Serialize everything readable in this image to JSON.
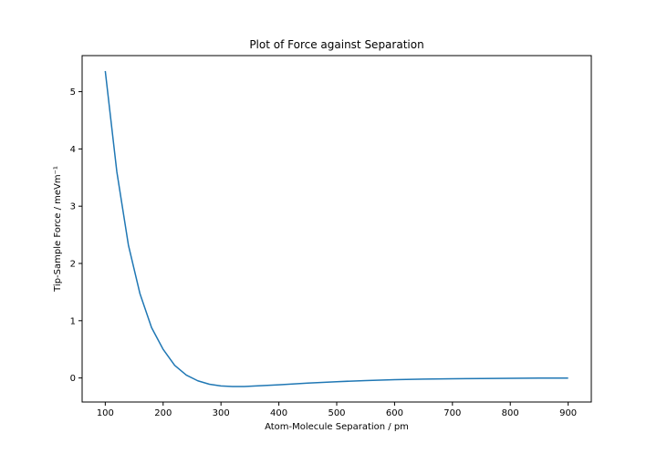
{
  "chart_data": {
    "type": "line",
    "title": "Plot of Force against Separation",
    "xlabel": "Atom-Molecule Separation / pm",
    "ylabel": "Tip-Sample Force / meVm⁻¹",
    "xlim": [
      60,
      940
    ],
    "ylim": [
      -0.42,
      5.63
    ],
    "xticks": [
      100,
      200,
      300,
      400,
      500,
      600,
      700,
      800,
      900
    ],
    "yticks": [
      0,
      1,
      2,
      3,
      4,
      5
    ],
    "grid": false,
    "series": [
      {
        "color": "#1f77b4",
        "x": [
          100,
          120,
          140,
          160,
          180,
          200,
          220,
          240,
          260,
          280,
          300,
          320,
          340,
          360,
          380,
          400,
          450,
          500,
          550,
          600,
          650,
          700,
          750,
          800,
          850,
          900
        ],
        "y": [
          5.36,
          3.6,
          2.32,
          1.47,
          0.88,
          0.5,
          0.22,
          0.05,
          -0.05,
          -0.11,
          -0.14,
          -0.15,
          -0.15,
          -0.14,
          -0.13,
          -0.12,
          -0.09,
          -0.065,
          -0.045,
          -0.03,
          -0.02,
          -0.013,
          -0.009,
          -0.006,
          -0.003,
          -0.002
        ]
      }
    ]
  }
}
